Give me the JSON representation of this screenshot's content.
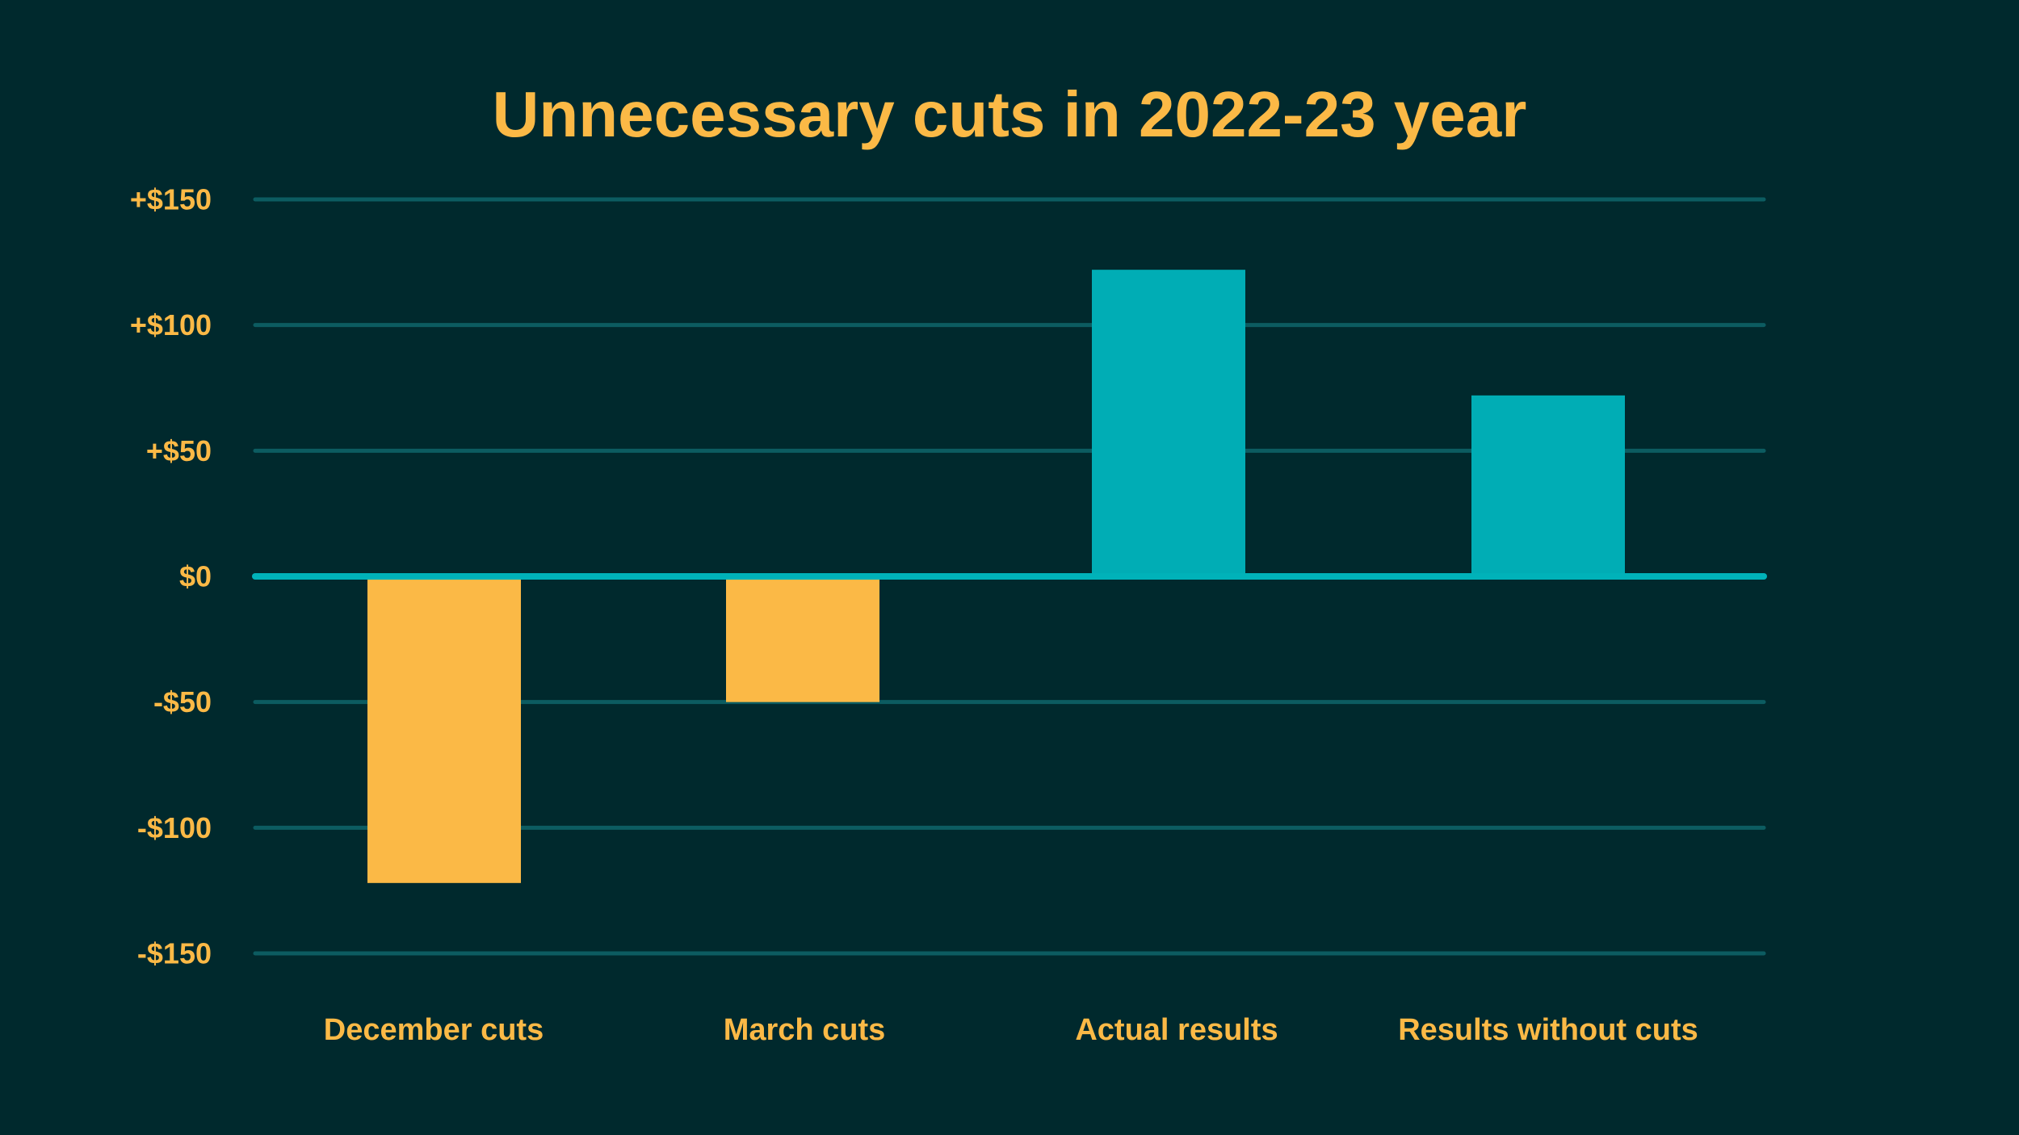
{
  "colors": {
    "background": "#00292d",
    "text": "#fbb946",
    "negative_bar": "#fbb946",
    "positive_bar": "#00adb5",
    "gridline": "#0c5c61",
    "zero_line": "#00b2b9"
  },
  "chart_data": {
    "type": "bar",
    "title": "Unnecessary cuts in 2022-23 year",
    "xlabel": "",
    "ylabel": "",
    "categories": [
      "December cuts",
      "March cuts",
      "Actual results",
      "Results without cuts"
    ],
    "values": [
      -122,
      -50,
      122,
      72
    ],
    "ylim": [
      -150,
      150
    ],
    "yticks": [
      150,
      100,
      50,
      0,
      -50,
      -100,
      -150
    ],
    "ytick_labels": [
      "+$150",
      "+$100",
      "+$50",
      "$0",
      "-$50",
      "-$100",
      "-$150"
    ],
    "grid": true,
    "legend": "none"
  }
}
